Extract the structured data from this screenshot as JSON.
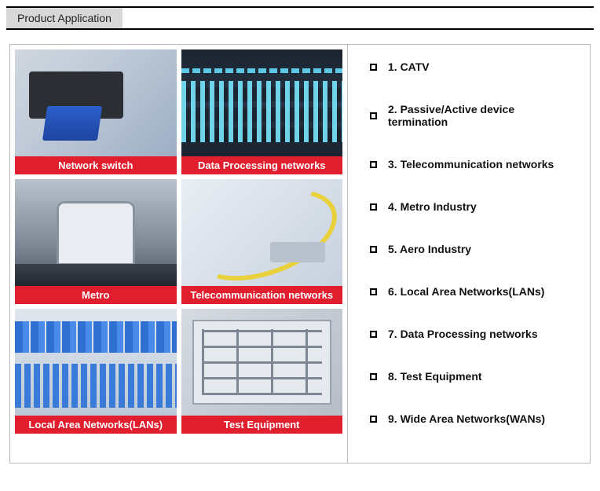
{
  "header": {
    "title": "Product Application"
  },
  "tiles": [
    {
      "caption": "Network switch",
      "imgclass": "img-switch"
    },
    {
      "caption": "Data Processing networks",
      "imgclass": "img-data"
    },
    {
      "caption": "Metro",
      "imgclass": "img-metro"
    },
    {
      "caption": "Telecommunication networks",
      "imgclass": "img-telecom"
    },
    {
      "caption": "Local Area Networks(LANs)",
      "imgclass": "img-lan"
    },
    {
      "caption": "Test Equipment",
      "imgclass": "img-test"
    }
  ],
  "applications": [
    "1. CATV",
    "2. Passive/Active device termination",
    "3. Telecommunication networks",
    "4. Metro Industry",
    "5. Aero Industry",
    "6. Local Area Networks(LANs)",
    "7. Data Processing networks",
    "8. Test Equipment",
    "9. Wide Area Networks(WANs)"
  ],
  "colors": {
    "caption_bg": "#e01e2e",
    "header_tab_bg": "#d8d8d8",
    "border": "#bbbbbb"
  }
}
